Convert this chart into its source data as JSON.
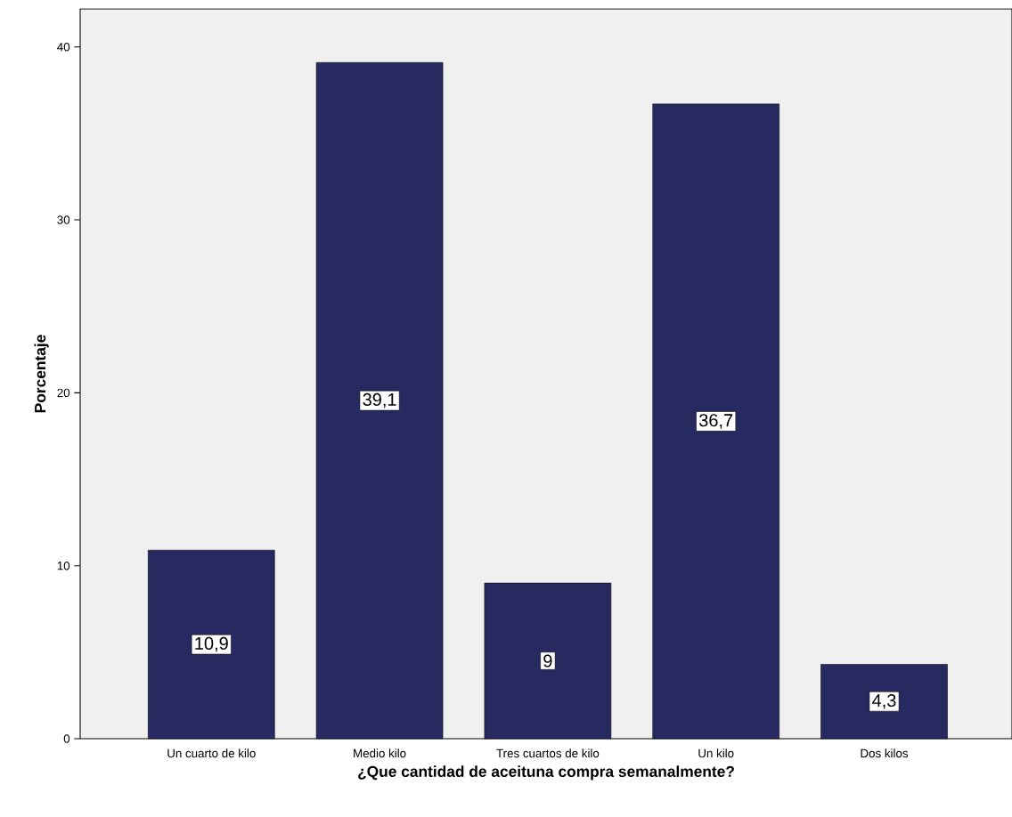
{
  "chart_data": {
    "type": "bar",
    "xlabel": "¿Que cantidad de aceituna compra semanalmente?",
    "ylabel": "Porcentaje",
    "categories": [
      "Un cuarto de kilo",
      "Medio kilo",
      "Tres cuartos de kilo",
      "Un kilo",
      "Dos kilos"
    ],
    "values": [
      10.9,
      39.1,
      9,
      36.7,
      4.3
    ],
    "value_labels": [
      "10,9",
      "39,1",
      "9",
      "36,7",
      "4,3"
    ],
    "color": "#262a60",
    "ylim": [
      0,
      42.2
    ],
    "yticks": [
      0,
      10,
      20,
      30,
      40
    ]
  }
}
